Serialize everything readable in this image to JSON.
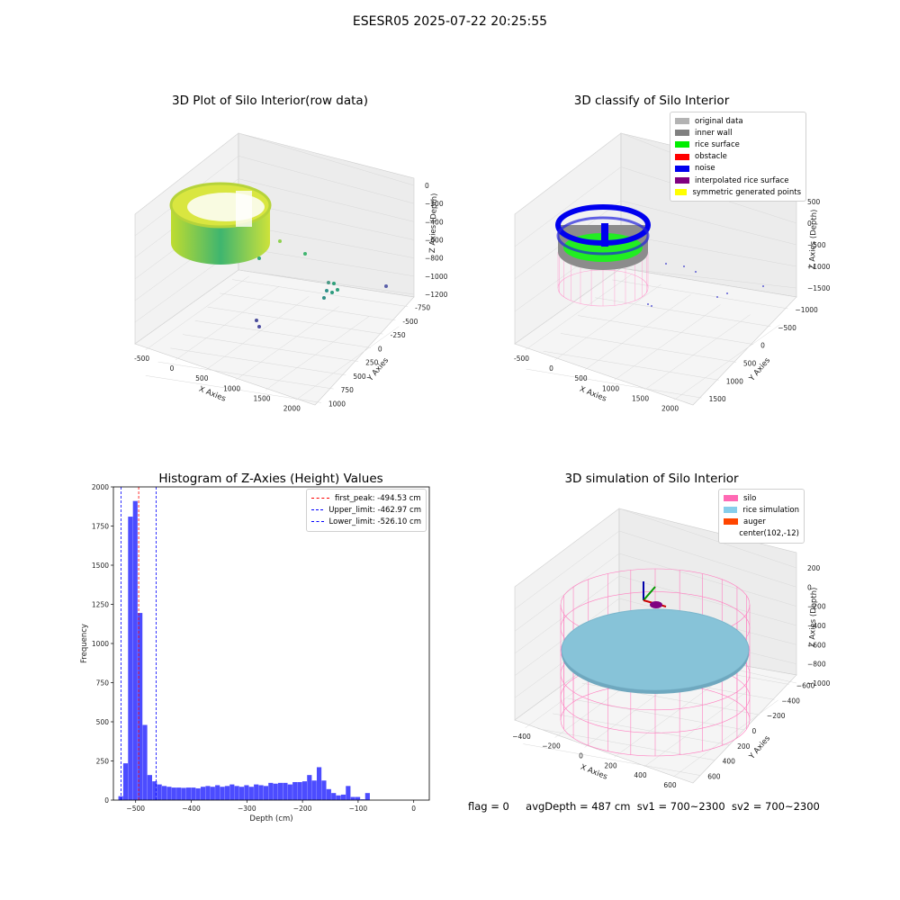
{
  "suptitle": "ESESR05 2025-07-22 20:25:55",
  "panels": {
    "raw": {
      "title": "3D Plot of Silo Interior(row data)",
      "xlabel": "X Axies",
      "ylabel": "Y Axies",
      "zlabel": "Z Axies (Depth)",
      "xticks": [
        "-500",
        "0",
        "500",
        "1000",
        "1500",
        "2000"
      ],
      "yticks": [
        "-750",
        "-500",
        "-250",
        "0",
        "250",
        "500",
        "750",
        "1000"
      ],
      "zticks": [
        "0",
        "−200",
        "−400",
        "−600",
        "−800",
        "−1000",
        "−1200"
      ]
    },
    "classify": {
      "title": "3D classify of Silo Interior",
      "xlabel": "X Axies",
      "ylabel": "Y Axies",
      "zlabel": "Z Axies (Depth)",
      "xticks": [
        "-500",
        "0",
        "500",
        "1000",
        "1500",
        "2000"
      ],
      "yticks": [
        "−1000",
        "−500",
        "0",
        "500",
        "1000",
        "1500"
      ],
      "zticks": [
        "500",
        "0",
        "−500",
        "−1000",
        "−1500"
      ],
      "legend": [
        {
          "label": "original data",
          "color": "#b3b3b3"
        },
        {
          "label": "inner wall",
          "color": "#808080"
        },
        {
          "label": "rice surface",
          "color": "#00ee00"
        },
        {
          "label": "obstacle",
          "color": "#ff0000"
        },
        {
          "label": "noise",
          "color": "#0000ee"
        },
        {
          "label": "interpolated rice surface",
          "color": "#800080"
        },
        {
          "label": "symmetric generated points",
          "color": "#ffff00"
        }
      ]
    },
    "simulation": {
      "title": "3D simulation of Silo Interior",
      "xlabel": "X Axies",
      "ylabel": "Y Axies",
      "zlabel": "Z Axies (Depth)",
      "xticks": [
        "−400",
        "−200",
        "0",
        "200",
        "400",
        "600"
      ],
      "yticks": [
        "−600",
        "−400",
        "−200",
        "0",
        "200",
        "400",
        "600"
      ],
      "zticks": [
        "200",
        "0",
        "−200",
        "−400",
        "−600",
        "−800",
        "−1000"
      ],
      "legend": [
        {
          "label": "silo",
          "color": "#ff69b4"
        },
        {
          "label": "rice simulation",
          "color": "#87ceeb"
        },
        {
          "label": "auger",
          "color": "#ff4500"
        },
        {
          "label": "center(102,-12)",
          "color": ""
        }
      ]
    }
  },
  "chart_data": [
    {
      "type": "bar",
      "title": "Histogram of Z-Axies (Height) Values",
      "xlabel": "Depth (cm)",
      "ylabel": "Frequency",
      "xlim": [
        -540,
        28
      ],
      "ylim": [
        0,
        2000
      ],
      "xticks": [
        -500,
        -400,
        -300,
        -200,
        -100,
        0
      ],
      "yticks": [
        0,
        250,
        500,
        750,
        1000,
        1250,
        1500,
        1750,
        2000
      ],
      "bin_width": 8.7,
      "x_start": -531,
      "color": "#0000ff",
      "values": [
        25,
        235,
        1810,
        1910,
        1195,
        480,
        160,
        120,
        100,
        90,
        85,
        80,
        80,
        78,
        80,
        80,
        75,
        85,
        90,
        85,
        95,
        85,
        90,
        100,
        90,
        85,
        95,
        85,
        100,
        95,
        90,
        110,
        105,
        110,
        110,
        100,
        115,
        115,
        120,
        160,
        125,
        210,
        125,
        70,
        45,
        30,
        35,
        90,
        20,
        20,
        5,
        45
      ],
      "lines": [
        {
          "label": "first_peak: -494.53 cm",
          "x": -494.53,
          "color": "#ff0000"
        },
        {
          "label": "Upper_limit: -462.97 cm",
          "x": -462.97,
          "color": "#0000ff"
        },
        {
          "label": "Lower_limit: -526.10 cm",
          "x": -526.1,
          "color": "#0000ff"
        }
      ],
      "legend_position": "upper right"
    }
  ],
  "footer": {
    "flag": "flag = 0",
    "avg": "avgDepth = 487 cm",
    "sv1": "sv1 = 700~2300",
    "sv2": "sv2 = 700~2300"
  }
}
